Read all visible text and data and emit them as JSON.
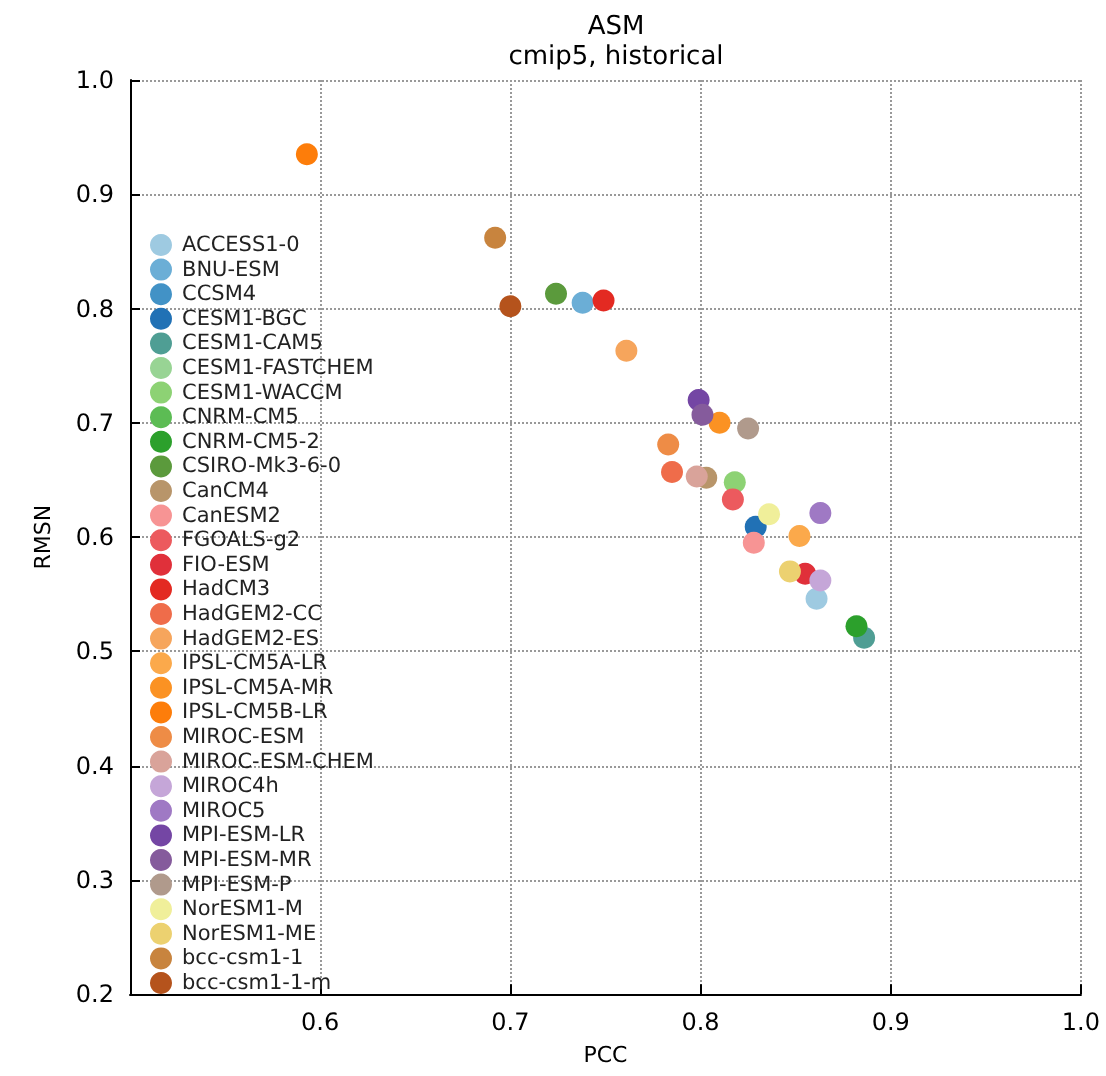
{
  "chart_data": {
    "type": "scatter",
    "title": "ASM",
    "subtitle": "cmip5, historical",
    "xlabel": "PCC",
    "ylabel": "RMSN",
    "xlim": [
      0.5,
      1.0
    ],
    "xticks": [
      0.6,
      0.7,
      0.8,
      0.9,
      {
        "value": 1.0,
        "label": "1.0"
      }
    ],
    "ylim": [
      0.2,
      1.0
    ],
    "yticks": [
      0.2,
      0.3,
      0.4,
      0.5,
      0.6,
      0.7,
      0.8,
      0.9,
      {
        "value": 1.0,
        "label": "1.0"
      }
    ],
    "grid": true,
    "legend": "left",
    "marker": "circle",
    "series": [
      {
        "name": "ACCESS1-0",
        "color": "#9ecae1",
        "x": [
          0.861
        ],
        "values": [
          0.546
        ]
      },
      {
        "name": "BNU-ESM",
        "color": "#6baed6",
        "x": [
          0.738
        ],
        "values": [
          0.805
        ]
      },
      {
        "name": "CCSM4",
        "color": "#4292c6",
        "x": [
          null
        ],
        "values": [
          null
        ]
      },
      {
        "name": "CESM1-BGC",
        "color": "#2171b5",
        "x": [
          0.829
        ],
        "values": [
          0.609
        ]
      },
      {
        "name": "CESM1-CAM5",
        "color": "#4f9e94",
        "x": [
          0.886
        ],
        "values": [
          0.512
        ]
      },
      {
        "name": "CESM1-FASTCHEM",
        "color": "#98d494",
        "x": [
          null
        ],
        "values": [
          null
        ]
      },
      {
        "name": "CESM1-WACCM",
        "color": "#8dd274",
        "x": [
          0.818
        ],
        "values": [
          0.648
        ]
      },
      {
        "name": "CNRM-CM5",
        "color": "#5cbc54",
        "x": [
          null
        ],
        "values": [
          null
        ]
      },
      {
        "name": "CNRM-CM5-2",
        "color": "#2ca02c",
        "x": [
          0.882
        ],
        "values": [
          0.522
        ]
      },
      {
        "name": "CSIRO-Mk3-6-0",
        "color": "#5b9a3c",
        "x": [
          0.724
        ],
        "values": [
          0.813
        ]
      },
      {
        "name": "CanCM4",
        "color": "#b8956a",
        "x": [
          0.803
        ],
        "values": [
          0.652
        ]
      },
      {
        "name": "CanESM2",
        "color": "#f79494",
        "x": [
          0.828
        ],
        "values": [
          0.595
        ]
      },
      {
        "name": "FGOALS-g2",
        "color": "#ec5a5e",
        "x": [
          0.817
        ],
        "values": [
          0.633
        ]
      },
      {
        "name": "FIO-ESM",
        "color": "#e0303a",
        "x": [
          0.855
        ],
        "values": [
          0.568
        ]
      },
      {
        "name": "HadCM3",
        "color": "#e32a22",
        "x": [
          0.749
        ],
        "values": [
          0.807
        ]
      },
      {
        "name": "HadGEM2-CC",
        "color": "#ef6c4a",
        "x": [
          0.785
        ],
        "values": [
          0.657
        ]
      },
      {
        "name": "HadGEM2-ES",
        "color": "#f6a55c",
        "x": [
          0.761
        ],
        "values": [
          0.763
        ]
      },
      {
        "name": "IPSL-CM5A-LR",
        "color": "#fba94b",
        "x": [
          0.852
        ],
        "values": [
          0.601
        ]
      },
      {
        "name": "IPSL-CM5A-MR",
        "color": "#fb9223",
        "x": [
          0.81
        ],
        "values": [
          0.7
        ]
      },
      {
        "name": "IPSL-CM5B-LR",
        "color": "#fd7d0a",
        "x": [
          0.593
        ],
        "values": [
          0.935
        ]
      },
      {
        "name": "MIROC-ESM",
        "color": "#ee8c46",
        "x": [
          0.783
        ],
        "values": [
          0.681
        ]
      },
      {
        "name": "MIROC-ESM-CHEM",
        "color": "#d9a39a",
        "x": [
          0.798
        ],
        "values": [
          0.653
        ]
      },
      {
        "name": "MIROC4h",
        "color": "#c5a6d8",
        "x": [
          0.863
        ],
        "values": [
          0.562
        ]
      },
      {
        "name": "MIROC5",
        "color": "#9f79c4",
        "x": [
          0.863
        ],
        "values": [
          0.621
        ]
      },
      {
        "name": "MPI-ESM-LR",
        "color": "#7446a4",
        "x": [
          0.799
        ],
        "values": [
          0.72
        ]
      },
      {
        "name": "MPI-ESM-MR",
        "color": "#855b9c",
        "x": [
          0.801
        ],
        "values": [
          0.707
        ]
      },
      {
        "name": "MPI-ESM-P",
        "color": "#b09a8c",
        "x": [
          0.825
        ],
        "values": [
          0.695
        ]
      },
      {
        "name": "NorESM1-M",
        "color": "#f0ef9a",
        "x": [
          0.836
        ],
        "values": [
          0.62
        ]
      },
      {
        "name": "NorESM1-ME",
        "color": "#ecd170",
        "x": [
          0.847
        ],
        "values": [
          0.57
        ]
      },
      {
        "name": "bcc-csm1-1",
        "color": "#c8843e",
        "x": [
          0.692
        ],
        "values": [
          0.862
        ]
      },
      {
        "name": "bcc-csm1-1-m",
        "color": "#b5531c",
        "x": [
          0.7
        ],
        "values": [
          0.802
        ]
      }
    ]
  }
}
